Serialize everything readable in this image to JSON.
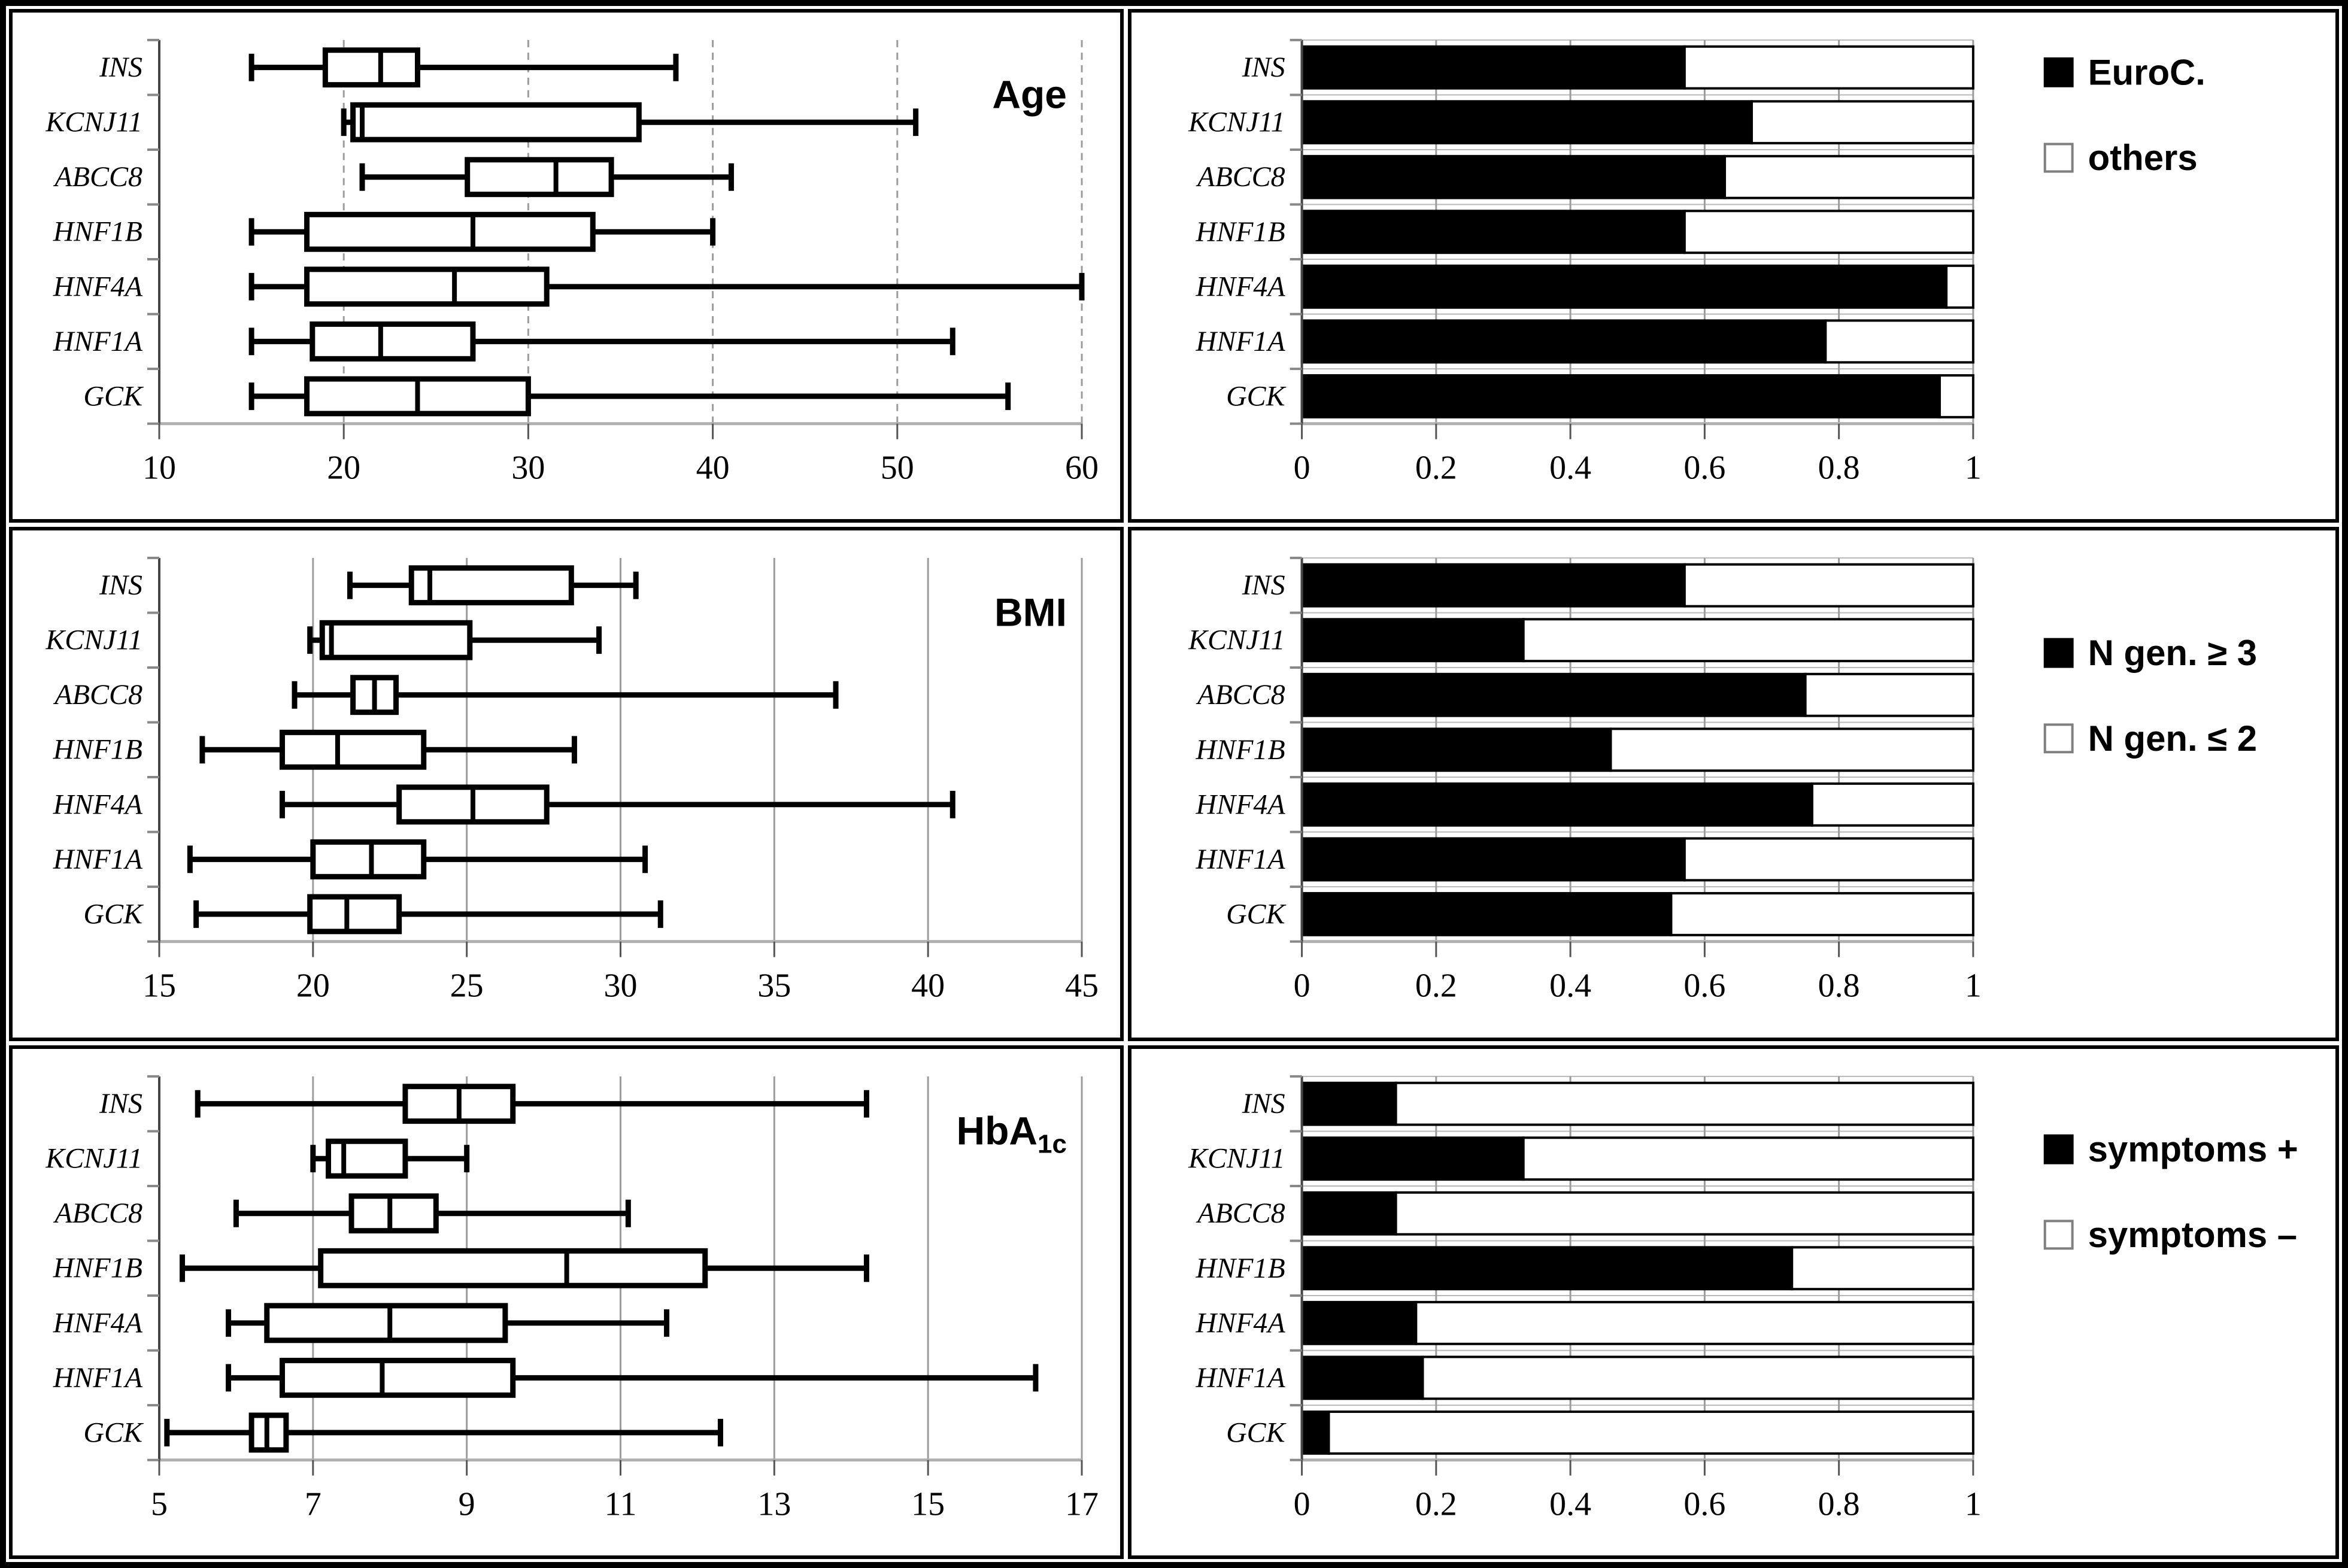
{
  "figure": {
    "genes": [
      "INS",
      "KCNJ11",
      "ABCC8",
      "HNF1B",
      "HNF4A",
      "HNF1A",
      "GCK"
    ],
    "colors": {
      "filled_series": "#000000",
      "empty_series": "#ffffff",
      "gridline": "#9c9c9c"
    }
  },
  "chart_data": [
    {
      "id": "age",
      "type": "boxplot",
      "panel": "row1-left",
      "title": "Age",
      "categories": [
        "INS",
        "KCNJ11",
        "ABCC8",
        "HNF1B",
        "HNF4A",
        "HNF1A",
        "GCK"
      ],
      "xlim": [
        10,
        60
      ],
      "xticks": [
        10,
        20,
        30,
        40,
        50,
        60
      ],
      "xtick_labels": [
        "10",
        "20",
        "30",
        "40",
        "50",
        "60"
      ],
      "grid": "dashed",
      "box_values": [
        {
          "min": 15,
          "q1": 19,
          "median": 22,
          "q3": 24,
          "max": 38
        },
        {
          "min": 20,
          "q1": 20.5,
          "median": 21,
          "q3": 36,
          "max": 51
        },
        {
          "min": 21,
          "q1": 26.7,
          "median": 31.5,
          "q3": 34.5,
          "max": 41
        },
        {
          "min": 15,
          "q1": 18,
          "median": 27,
          "q3": 33.5,
          "max": 40
        },
        {
          "min": 15,
          "q1": 18,
          "median": 26,
          "q3": 31,
          "max": 60
        },
        {
          "min": 15,
          "q1": 18.3,
          "median": 22,
          "q3": 27,
          "max": 53
        },
        {
          "min": 15,
          "q1": 18,
          "median": 24,
          "q3": 30,
          "max": 56
        }
      ]
    },
    {
      "id": "euroc",
      "type": "stacked-bar",
      "panel": "row1-right",
      "categories": [
        "INS",
        "KCNJ11",
        "ABCC8",
        "HNF1B",
        "HNF4A",
        "HNF1A",
        "GCK"
      ],
      "xlim": [
        0,
        1
      ],
      "xticks": [
        0,
        0.2,
        0.4,
        0.6,
        0.8,
        1
      ],
      "xtick_labels": [
        "0",
        "0.2",
        "0.4",
        "0.6",
        "0.8",
        "1"
      ],
      "grid": "solid",
      "legend": [
        {
          "label": "EuroC.",
          "swatch": "black"
        },
        {
          "label": "others",
          "swatch": "white"
        }
      ],
      "black_fractions": [
        0.57,
        0.67,
        0.63,
        0.57,
        0.96,
        0.78,
        0.95
      ]
    },
    {
      "id": "bmi",
      "type": "boxplot",
      "panel": "row2-left",
      "title": "BMI",
      "categories": [
        "INS",
        "KCNJ11",
        "ABCC8",
        "HNF1B",
        "HNF4A",
        "HNF1A",
        "GCK"
      ],
      "xlim": [
        15,
        45
      ],
      "xticks": [
        15,
        20,
        25,
        30,
        35,
        40,
        45
      ],
      "xtick_labels": [
        "15",
        "20",
        "25",
        "30",
        "35",
        "40",
        "45"
      ],
      "grid": "solid",
      "box_values": [
        {
          "min": 21.2,
          "q1": 23.2,
          "median": 23.8,
          "q3": 28.4,
          "max": 30.5
        },
        {
          "min": 19.9,
          "q1": 20.3,
          "median": 20.6,
          "q3": 25.1,
          "max": 29.3
        },
        {
          "min": 19.4,
          "q1": 21.3,
          "median": 22,
          "q3": 22.7,
          "max": 37
        },
        {
          "min": 16.4,
          "q1": 19,
          "median": 20.8,
          "q3": 23.6,
          "max": 28.5
        },
        {
          "min": 19,
          "q1": 22.8,
          "median": 25.2,
          "q3": 27.6,
          "max": 40.8
        },
        {
          "min": 16,
          "q1": 20,
          "median": 21.9,
          "q3": 23.6,
          "max": 30.8
        },
        {
          "min": 16.2,
          "q1": 19.9,
          "median": 21.1,
          "q3": 22.8,
          "max": 31.3
        }
      ]
    },
    {
      "id": "ngen",
      "type": "stacked-bar",
      "panel": "row2-right",
      "categories": [
        "INS",
        "KCNJ11",
        "ABCC8",
        "HNF1B",
        "HNF4A",
        "HNF1A",
        "GCK"
      ],
      "xlim": [
        0,
        1
      ],
      "xticks": [
        0,
        0.2,
        0.4,
        0.6,
        0.8,
        1
      ],
      "xtick_labels": [
        "0",
        "0.2",
        "0.4",
        "0.6",
        "0.8",
        "1"
      ],
      "grid": "solid",
      "legend": [
        {
          "label": "N gen. ≥ 3",
          "swatch": "black"
        },
        {
          "label": "N gen. ≤ 2",
          "swatch": "white"
        }
      ],
      "black_fractions": [
        0.57,
        0.33,
        0.75,
        0.46,
        0.76,
        0.57,
        0.55
      ]
    },
    {
      "id": "hba1c",
      "type": "boxplot",
      "panel": "row3-left",
      "title": "HbA",
      "title_sub": "1c",
      "categories": [
        "INS",
        "KCNJ11",
        "ABCC8",
        "HNF1B",
        "HNF4A",
        "HNF1A",
        "GCK"
      ],
      "xlim": [
        5,
        17
      ],
      "xticks": [
        5,
        7,
        9,
        11,
        13,
        15,
        17
      ],
      "xtick_labels": [
        "5",
        "7",
        "9",
        "11",
        "13",
        "15",
        "17"
      ],
      "grid": "solid",
      "box_values": [
        {
          "min": 5.5,
          "q1": 8.2,
          "median": 8.9,
          "q3": 9.6,
          "max": 14.2
        },
        {
          "min": 7,
          "q1": 7.2,
          "median": 7.4,
          "q3": 8.2,
          "max": 9
        },
        {
          "min": 6,
          "q1": 7.5,
          "median": 8,
          "q3": 8.6,
          "max": 11.1
        },
        {
          "min": 5.3,
          "q1": 7.1,
          "median": 10.3,
          "q3": 12.1,
          "max": 14.2
        },
        {
          "min": 5.9,
          "q1": 6.4,
          "median": 8,
          "q3": 9.5,
          "max": 11.6
        },
        {
          "min": 5.9,
          "q1": 6.6,
          "median": 7.9,
          "q3": 9.6,
          "max": 16.4
        },
        {
          "min": 5.1,
          "q1": 6.2,
          "median": 6.4,
          "q3": 6.65,
          "max": 12.3
        }
      ]
    },
    {
      "id": "symptoms",
      "type": "stacked-bar",
      "panel": "row3-right",
      "categories": [
        "INS",
        "KCNJ11",
        "ABCC8",
        "HNF1B",
        "HNF4A",
        "HNF1A",
        "GCK"
      ],
      "xlim": [
        0,
        1
      ],
      "xticks": [
        0,
        0.2,
        0.4,
        0.6,
        0.8,
        1
      ],
      "xtick_labels": [
        "0",
        "0.2",
        "0.4",
        "0.6",
        "0.8",
        "1"
      ],
      "grid": "solid",
      "legend": [
        {
          "label": "symptoms +",
          "swatch": "black"
        },
        {
          "label": "symptoms –",
          "swatch": "white"
        }
      ],
      "black_fractions": [
        0.14,
        0.33,
        0.14,
        0.73,
        0.17,
        0.18,
        0.04
      ]
    }
  ]
}
